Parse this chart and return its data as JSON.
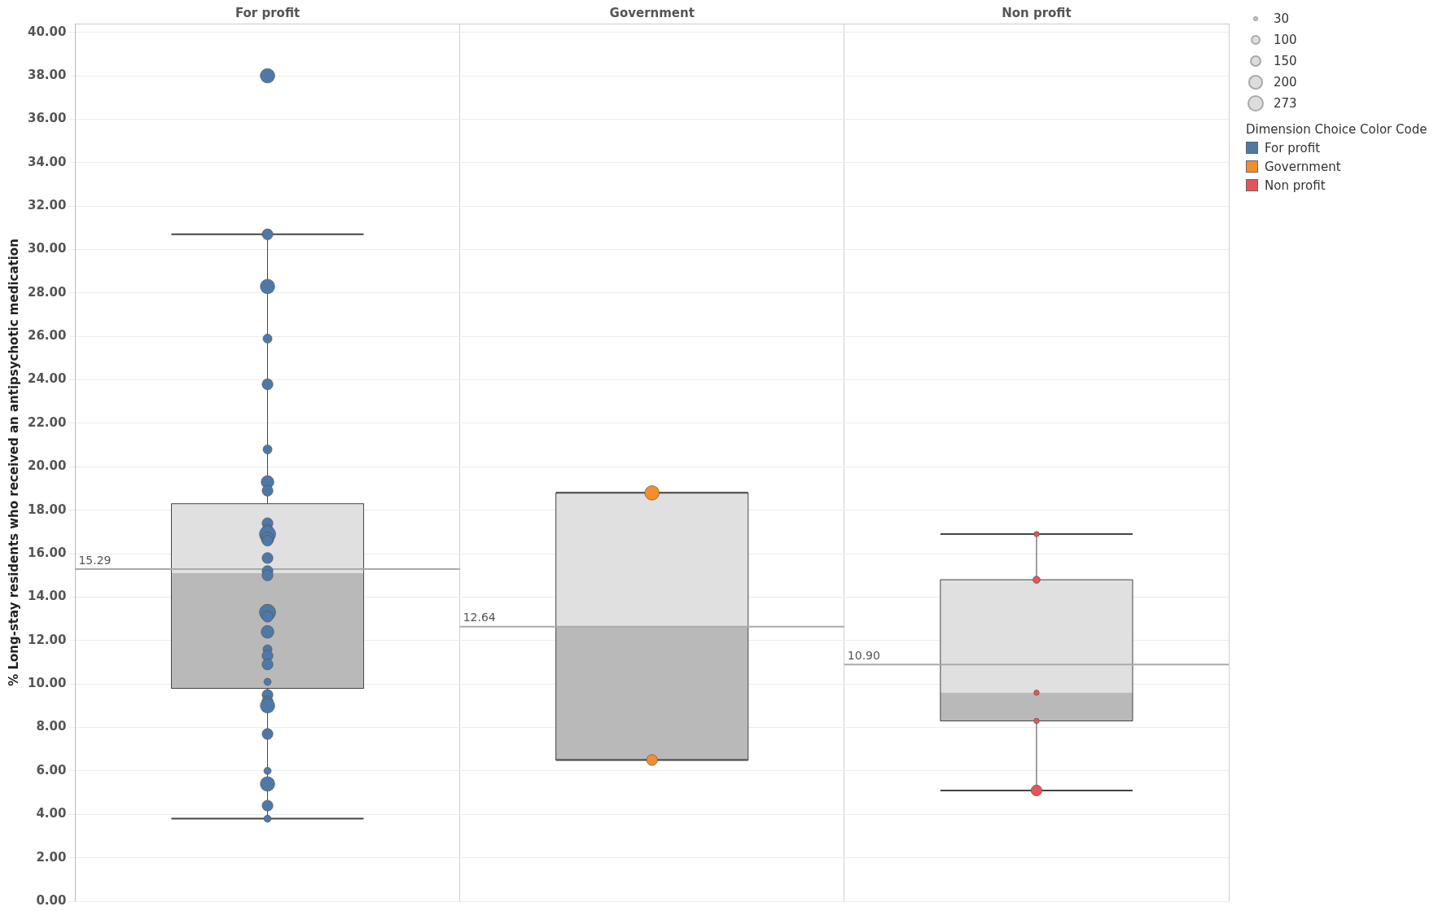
{
  "chart_data": {
    "type": "box",
    "ylabel": "% Long-stay residents who received an antipsychotic medication",
    "legend_title": "Dimension Choice Color Code",
    "legend": "top right",
    "grid": true,
    "categories": [
      "For profit",
      "Government",
      "Non profit"
    ],
    "ylim": [
      0,
      40.4
    ],
    "yticks": [
      {
        "value": 0,
        "label": "0.00"
      },
      {
        "value": 2,
        "label": "2.00"
      },
      {
        "value": 4,
        "label": "4.00"
      },
      {
        "value": 6,
        "label": "6.00"
      },
      {
        "value": 8,
        "label": "8.00"
      },
      {
        "value": 10,
        "label": "10.00"
      },
      {
        "value": 12,
        "label": "12.00"
      },
      {
        "value": 14,
        "label": "14.00"
      },
      {
        "value": 16,
        "label": "16.00"
      },
      {
        "value": 18,
        "label": "18.00"
      },
      {
        "value": 20,
        "label": "20.00"
      },
      {
        "value": 22,
        "label": "22.00"
      },
      {
        "value": 24,
        "label": "24.00"
      },
      {
        "value": 26,
        "label": "26.00"
      },
      {
        "value": 28,
        "label": "28.00"
      },
      {
        "value": 30,
        "label": "30.00"
      },
      {
        "value": 32,
        "label": "32.00"
      },
      {
        "value": 34,
        "label": "34.00"
      },
      {
        "value": 36,
        "label": "36.00"
      },
      {
        "value": 38,
        "label": "38.00"
      },
      {
        "value": 40,
        "label": "40.00"
      }
    ],
    "boxes": [
      {
        "low": 3.8,
        "q1": 9.8,
        "median": 15.1,
        "q3": 18.3,
        "high": 30.7
      },
      {
        "low": 6.5,
        "q1": 6.5,
        "median": 12.64,
        "q3": 18.8,
        "high": 18.8
      },
      {
        "low": 5.1,
        "q1": 8.3,
        "median": 9.6,
        "q3": 14.8,
        "high": 16.9
      }
    ],
    "size_legend": [
      30,
      100,
      150,
      200,
      273
    ],
    "series": [
      {
        "name": "For profit",
        "type": "bubble",
        "color": "#4e79a7",
        "x": [
          "For profit",
          "For profit",
          "For profit",
          "For profit",
          "For profit",
          "For profit",
          "For profit",
          "For profit",
          "For profit",
          "For profit",
          "For profit",
          "For profit",
          "For profit",
          "For profit",
          "For profit",
          "For profit",
          "For profit",
          "For profit",
          "For profit",
          "For profit",
          "For profit",
          "For profit",
          "For profit",
          "For profit",
          "For profit",
          "For profit",
          "For profit",
          "For profit",
          "For profit",
          "For profit",
          "For profit"
        ],
        "values": [
          38.0,
          30.7,
          28.3,
          25.9,
          23.8,
          20.8,
          19.3,
          18.9,
          17.4,
          17.1,
          16.9,
          16.7,
          16.6,
          15.8,
          15.2,
          15.0,
          13.3,
          13.1,
          12.4,
          11.6,
          11.3,
          10.9,
          10.1,
          9.5,
          9.2,
          9.0,
          7.7,
          6.0,
          5.4,
          4.4,
          3.8
        ],
        "sizes": [
          216,
          123,
          216,
          84,
          123,
          84,
          167,
          123,
          123,
          123,
          273,
          167,
          123,
          123,
          123,
          123,
          273,
          123,
          167,
          84,
          123,
          123,
          54,
          123,
          123,
          216,
          123,
          54,
          216,
          123,
          54
        ]
      },
      {
        "name": "Government",
        "type": "bubble",
        "color": "#f28e2b",
        "x": [
          "Government",
          "Government"
        ],
        "values": [
          18.8,
          6.5
        ],
        "sizes": [
          216,
          123
        ]
      },
      {
        "name": "Non profit",
        "type": "bubble",
        "color": "#e15759",
        "x": [
          "Non profit",
          "Non profit",
          "Non profit",
          "Non profit",
          "Non profit"
        ],
        "values": [
          16.9,
          14.8,
          9.6,
          8.3,
          5.1
        ],
        "sizes": [
          30,
          54,
          30,
          30,
          123
        ]
      }
    ],
    "ref_lines": [
      {
        "axis": "y",
        "value": 15.29,
        "label": "15.29"
      },
      {
        "axis": "y",
        "value": 12.64,
        "label": "12.64"
      },
      {
        "axis": "y",
        "value": 10.9,
        "label": "10.90"
      }
    ]
  }
}
